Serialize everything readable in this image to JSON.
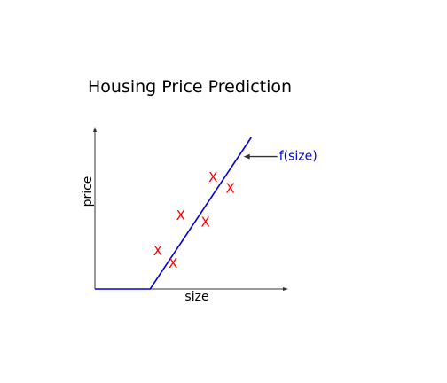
{
  "chart_data": {
    "type": "scatter",
    "title": "Housing Price Prediction",
    "xlabel": "size",
    "ylabel": "price",
    "xlim": [
      0,
      10
    ],
    "ylim": [
      0,
      10
    ],
    "grid": false,
    "point_marker": "X",
    "point_color": "#ff0000",
    "points": [
      {
        "x": 3.3,
        "y": 2.4
      },
      {
        "x": 4.1,
        "y": 1.6
      },
      {
        "x": 4.5,
        "y": 4.6
      },
      {
        "x": 5.8,
        "y": 4.2
      },
      {
        "x": 6.2,
        "y": 7.0
      },
      {
        "x": 7.1,
        "y": 6.3
      }
    ],
    "model_line": {
      "color": "#0000dd",
      "points": [
        {
          "x": 0,
          "y": 0
        },
        {
          "x": 2.9,
          "y": 0
        },
        {
          "x": 8.2,
          "y": 9.5
        }
      ]
    },
    "annotation": {
      "text": "f(size)",
      "color": "#0000dd",
      "arrow_target": {
        "x": 7.8,
        "y": 8.3
      }
    }
  }
}
